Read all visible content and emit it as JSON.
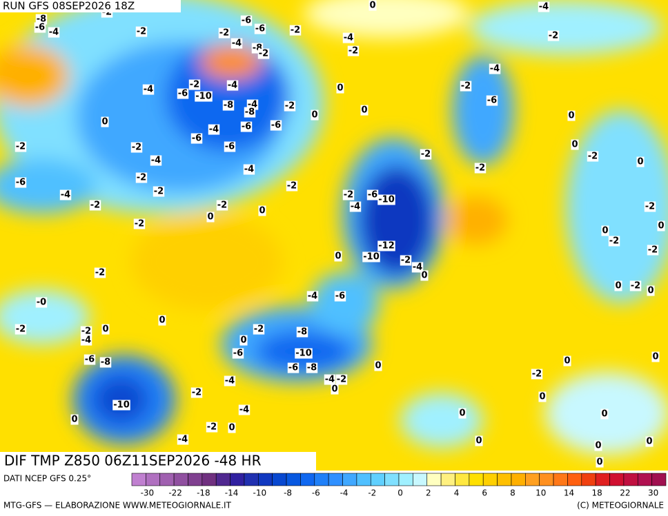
{
  "header": {
    "run": "RUN GFS 08SEP2026 18Z"
  },
  "map": {
    "title": "DIF TMP Z850 06Z11SEP2026 -48 HR",
    "labels": [
      "-8",
      "-6",
      "-4",
      "-2",
      "-2",
      "-2",
      "-6",
      "-6",
      "-4",
      "-8",
      "-2",
      "-2",
      "-4",
      "-2",
      "0",
      "-4",
      "-2",
      "-4",
      "-2",
      "-6",
      "0",
      "-4",
      "-6",
      "-10",
      "-2",
      "-4",
      "-8",
      "-4",
      "-8",
      "-6",
      "-6",
      "-2",
      "0",
      "0",
      "0",
      "0",
      "-4",
      "-6",
      "-6",
      "-2",
      "-2",
      "-4",
      "-4",
      "-2",
      "-2",
      "0",
      "-2",
      "0",
      "-6",
      "-4",
      "-2",
      "-2",
      "-2",
      "-2",
      "0",
      "0",
      "-2",
      "-2",
      "-4",
      "-6",
      "-10",
      "-2",
      "-2",
      "0",
      "0",
      "-2",
      "-2",
      "-12",
      "0",
      "-10",
      "-2",
      "-4",
      "0",
      "-2",
      "0",
      "-2",
      "0",
      "-0",
      "-4",
      "-6",
      "0",
      "-2",
      "-2",
      "0",
      "-4",
      "-2",
      "0",
      "-8",
      "-6",
      "-6",
      "-8",
      "-10",
      "-6",
      "-8",
      "0",
      "0",
      "0",
      "-2",
      "-4",
      "-4",
      "-2",
      "0",
      "-2",
      "0",
      "-10",
      "-4",
      "0",
      "0",
      "0",
      "-2",
      "0",
      "-4",
      "0",
      "0",
      "0",
      "0"
    ]
  },
  "legend": {
    "source": "DATI NCEP GFS 0.25°",
    "colors": [
      "#c080d0",
      "#b070c0",
      "#a060b0",
      "#9050a0",
      "#804090",
      "#703080",
      "#502890",
      "#3020a0",
      "#2030b0",
      "#1038c0",
      "#0848d0",
      "#0858e0",
      "#1068f0",
      "#2080f8",
      "#3090ff",
      "#40a8ff",
      "#50c0ff",
      "#60d0ff",
      "#80e0ff",
      "#a0f0ff",
      "#c8f8ff",
      "#ffffc0",
      "#fff080",
      "#ffe840",
      "#ffe000",
      "#ffd000",
      "#ffc000",
      "#ffb000",
      "#ffa020",
      "#ff9020",
      "#ff7818",
      "#ff6010",
      "#f04010",
      "#e02020",
      "#d01030",
      "#c01040",
      "#b01050",
      "#a01050"
    ],
    "ticks": [
      "-30",
      "-22",
      "-18",
      "-14",
      "-10",
      "-8",
      "-6",
      "-4",
      "-2",
      "0",
      "2",
      "4",
      "6",
      "8",
      "10",
      "14",
      "18",
      "22",
      "30"
    ]
  },
  "footer": {
    "left": "MTG-GFS — ELABORAZIONE WWW.METEOGIORNALE.IT",
    "right": "(C) METEOGIORNALE"
  }
}
